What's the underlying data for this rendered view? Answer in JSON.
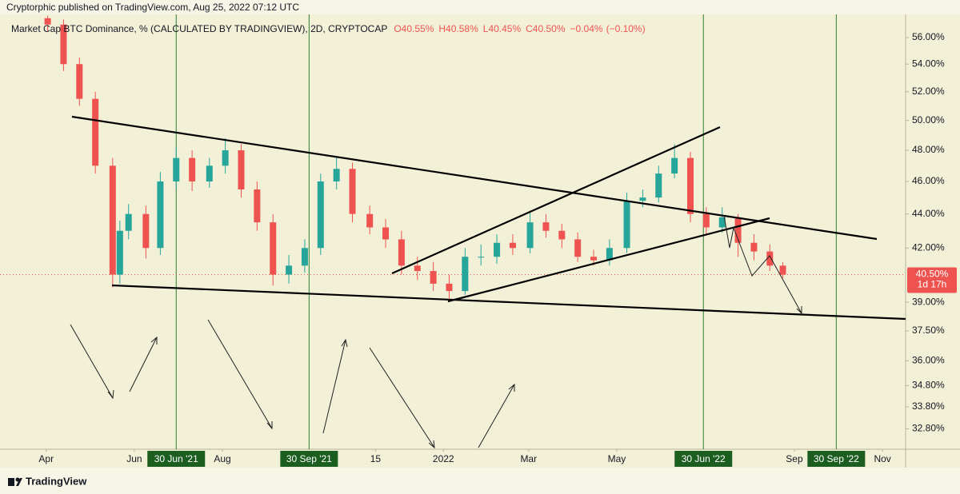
{
  "header": "Cryptorphic published on TradingView.com, Aug 25, 2022 07:12 UTC",
  "footer": "TradingView",
  "chart_data": {
    "type": "candlestick",
    "title": "Market Cap BTC Dominance, % (CALCULATED BY TRADINGVIEW), 2D, CRYPTOCAP",
    "legend_values": {
      "values": [
        40.55,
        40.58,
        40.45,
        40.5,
        -0.04,
        -0.1
      ],
      "value_labels": [
        "O40.55%",
        "H40.58%",
        "L40.45%",
        "C40.50%",
        "−0.04%",
        "(−0.10%)"
      ]
    },
    "last_price": {
      "value": 40.5,
      "label": "40.50%"
    },
    "countdown": "1d 17h",
    "up_color": "#26a69a",
    "down_color": "#ef5350",
    "log_scale": true,
    "x": [
      "2021-04-02",
      "2021-04-13",
      "2021-04-24",
      "2021-05-05",
      "2021-05-17",
      "2021-05-22",
      "2021-05-28",
      "2021-06-09",
      "2021-06-19",
      "2021-06-30",
      "2021-07-11",
      "2021-07-23",
      "2021-08-03",
      "2021-08-14",
      "2021-08-25",
      "2021-09-05",
      "2021-09-16",
      "2021-09-27",
      "2021-10-08",
      "2021-10-19",
      "2021-10-30",
      "2021-11-11",
      "2021-11-22",
      "2021-12-03",
      "2021-12-14",
      "2021-12-25",
      "2022-01-05",
      "2022-01-16",
      "2022-01-27",
      "2022-02-07",
      "2022-02-18",
      "2022-03-02",
      "2022-03-13",
      "2022-03-24",
      "2022-04-04",
      "2022-04-15",
      "2022-04-26",
      "2022-05-08",
      "2022-05-19",
      "2022-05-30",
      "2022-06-10",
      "2022-06-21",
      "2022-07-02",
      "2022-07-13",
      "2022-07-24",
      "2022-08-04",
      "2022-08-15",
      "2022-08-24"
    ],
    "open": [
      57.5,
      57,
      54,
      51.5,
      47,
      40.5,
      43,
      44,
      42,
      46,
      47.5,
      46,
      47,
      48,
      45.5,
      43.5,
      40.5,
      41,
      42,
      46,
      46.8,
      44,
      43.2,
      42.5,
      41,
      40.7,
      40,
      39.6,
      41.5,
      41.5,
      42.3,
      42,
      43.5,
      43,
      42.5,
      41.5,
      41.3,
      42,
      44.8,
      45,
      46.5,
      47.5,
      44,
      43.2,
      43.8,
      42.3,
      41.8,
      41
    ],
    "high": [
      57.7,
      57.4,
      54.5,
      52,
      47.5,
      43.6,
      44.6,
      44.5,
      46.6,
      48.2,
      48,
      47.5,
      48.8,
      48.4,
      46,
      44,
      41.6,
      42.5,
      46.5,
      47.6,
      47.2,
      44.5,
      43.7,
      43,
      41.5,
      41.2,
      40.5,
      42,
      42.2,
      42.8,
      42.8,
      44.2,
      44,
      43.4,
      42.9,
      41.9,
      42.5,
      45.3,
      45.5,
      47,
      48.4,
      47.9,
      44.4,
      44.4,
      44,
      42.8,
      42.2,
      41.2
    ],
    "low": [
      56.5,
      53.5,
      51,
      46.5,
      39.8,
      40,
      42.5,
      41.4,
      41.6,
      45.5,
      45.4,
      45.6,
      46.5,
      45,
      43,
      39.9,
      40,
      40.6,
      41.6,
      45.5,
      43.5,
      42.8,
      42,
      40.5,
      40.2,
      39.6,
      39.2,
      39.4,
      41,
      41.1,
      41.6,
      41.7,
      42.6,
      42,
      41.2,
      41,
      41,
      41.7,
      44.4,
      44.7,
      46.2,
      43.5,
      42.8,
      42.9,
      41.5,
      41.3,
      40.7,
      40.3
    ],
    "close": [
      57,
      54,
      51.5,
      47,
      40.5,
      43,
      44,
      42,
      46,
      47.5,
      46,
      47,
      48,
      45.5,
      43.5,
      40.5,
      41,
      42,
      46,
      46.8,
      44,
      43.2,
      42.5,
      41,
      40.7,
      40,
      39.6,
      41.5,
      41.5,
      42.3,
      42,
      43.5,
      43,
      42.5,
      41.5,
      41.3,
      42,
      44.8,
      45,
      46.5,
      47.5,
      44,
      43.2,
      43.8,
      42.3,
      41.8,
      41,
      40.5
    ],
    "xlim": [
      "2021-02-28",
      "2022-11-17"
    ],
    "xticks": [
      {
        "value": "2021-04-01",
        "label": "Apr"
      },
      {
        "value": "2021-06-01",
        "label": "Jun"
      },
      {
        "value": "2021-08-01",
        "label": "Aug"
      },
      {
        "value": "2021-11-15",
        "label": "15"
      },
      {
        "value": "2022-01-01",
        "label": "2022"
      },
      {
        "value": "2022-03-01",
        "label": "Mar"
      },
      {
        "value": "2022-05-01",
        "label": "May"
      },
      {
        "value": "2022-09-01",
        "label": "Sep"
      },
      {
        "value": "2022-11-01",
        "label": "Nov"
      }
    ],
    "marker_dates": [
      {
        "value": "2021-06-30",
        "label": "30 Jun '21"
      },
      {
        "value": "2021-09-30",
        "label": "30 Sep '21"
      },
      {
        "value": "2022-06-30",
        "label": "30 Jun '22"
      },
      {
        "value": "2022-09-30",
        "label": "30 Sep '22"
      }
    ],
    "ylim": [
      31.9,
      57.8
    ],
    "yticks": [
      {
        "value": 56,
        "label": "56.00%"
      },
      {
        "value": 54,
        "label": "54.00%"
      },
      {
        "value": 52,
        "label": "52.00%"
      },
      {
        "value": 50,
        "label": "50.00%"
      },
      {
        "value": 48,
        "label": "48.00%"
      },
      {
        "value": 46,
        "label": "46.00%"
      },
      {
        "value": 44,
        "label": "44.00%"
      },
      {
        "value": 42,
        "label": "42.00%"
      },
      {
        "value": 39,
        "label": "39.00%"
      },
      {
        "value": 37.5,
        "label": "37.50%"
      },
      {
        "value": 36,
        "label": "36.00%"
      },
      {
        "value": 34.8,
        "label": "34.80%"
      },
      {
        "value": 33.8,
        "label": "33.80%"
      },
      {
        "value": 32.8,
        "label": "32.80%"
      }
    ]
  }
}
